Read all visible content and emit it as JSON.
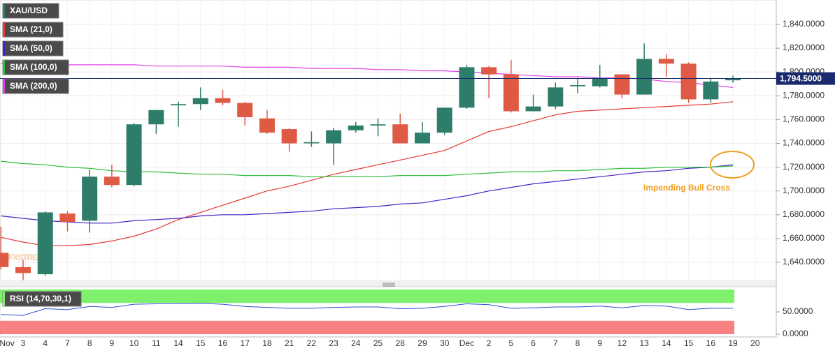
{
  "chart_data": [
    {
      "type": "candlestick",
      "name": "XAU/USD",
      "watermark": "FXSTREET",
      "categories": [
        "Nov",
        "3",
        "4",
        "7",
        "8",
        "9",
        "10",
        "11",
        "14",
        "15",
        "16",
        "17",
        "18",
        "21",
        "22",
        "23",
        "24",
        "25",
        "28",
        "29",
        "30",
        "Dec",
        "2",
        "5",
        "6",
        "7",
        "8",
        "9",
        "12",
        "13",
        "14",
        "15",
        "16",
        "19",
        "20"
      ],
      "open": [
        1648,
        1636,
        1630,
        1681,
        1675,
        1712,
        1705,
        1756,
        1772,
        1773,
        1778,
        1774,
        1761,
        1752,
        1740,
        1740,
        1751,
        1755,
        1756,
        1740,
        1749,
        1770,
        1804,
        1798,
        1767,
        1771,
        1788,
        1788,
        1798,
        1781,
        1811,
        1807,
        1777,
        1793,
        null
      ],
      "high": [
        1670,
        1642,
        1683,
        1683,
        1718,
        1722,
        1757,
        1768,
        1775,
        1787,
        1785,
        1775,
        1768,
        1753,
        1750,
        1753,
        1758,
        1761,
        1765,
        1758,
        1770,
        1806,
        1805,
        1810,
        1781,
        1791,
        1795,
        1806,
        1798,
        1824,
        1815,
        1808,
        1795,
        1797,
        null
      ],
      "low": [
        1634,
        1625,
        1629,
        1666,
        1665,
        1703,
        1704,
        1748,
        1754,
        1768,
        1772,
        1755,
        1748,
        1733,
        1737,
        1722,
        1749,
        1746,
        1740,
        1740,
        1747,
        1769,
        1778,
        1766,
        1767,
        1769,
        1782,
        1787,
        1778,
        1781,
        1796,
        1774,
        1774,
        1791,
        null
      ],
      "close": [
        1636,
        1631,
        1682,
        1674,
        1712,
        1705,
        1756,
        1768,
        1773,
        1778,
        1774,
        1762,
        1749,
        1740,
        1741,
        1751,
        1755,
        1756,
        1740,
        1749,
        1770,
        1804,
        1798,
        1767,
        1771,
        1787,
        1789,
        1795,
        1781,
        1811,
        1807,
        1777,
        1792,
        1794.5,
        null
      ],
      "up_color": "#2e7d6b",
      "down_color": "#df5a45",
      "overlays": [
        {
          "name": "SMA (21,0)",
          "color": "#e53935",
          "values": [
            1661,
            1657,
            1654,
            1654,
            1655,
            1658,
            1662,
            1668,
            1676,
            1682,
            1688,
            1694,
            1700,
            1704,
            1709,
            1714,
            1718,
            1722,
            1726,
            1730,
            1734,
            1742,
            1750,
            1754,
            1759,
            1764,
            1767,
            1768,
            1769,
            1770,
            1771,
            1772,
            1773,
            1775,
            null
          ]
        },
        {
          "name": "SMA (50,0)",
          "color": "#4a22c8",
          "values": [
            1679,
            1677,
            1675,
            1674,
            1673,
            1673,
            1675,
            1676,
            1677,
            1679,
            1680,
            1680,
            1681,
            1682,
            1683,
            1685,
            1686,
            1687,
            1689,
            1690,
            1693,
            1696,
            1700,
            1703,
            1706,
            1708,
            1710,
            1712,
            1714,
            1716,
            1717,
            1719,
            1720,
            1722,
            null
          ]
        },
        {
          "name": "SMA (100,0)",
          "color": "#2fbf3a",
          "values": [
            1725,
            1723,
            1722,
            1720,
            1719,
            1717,
            1716,
            1716,
            1715,
            1714,
            1714,
            1713,
            1713,
            1713,
            1712,
            1712,
            1712,
            1712,
            1713,
            1713,
            1713,
            1714,
            1715,
            1716,
            1716,
            1717,
            1717,
            1718,
            1719,
            1719,
            1720,
            1720,
            1720,
            1721,
            null
          ]
        },
        {
          "name": "SMA (200,0)",
          "color": "#e040e8",
          "values": [
            1807,
            1807,
            1807,
            1806,
            1806,
            1806,
            1806,
            1805,
            1805,
            1805,
            1805,
            1804,
            1804,
            1804,
            1803,
            1803,
            1803,
            1802,
            1802,
            1801,
            1801,
            1800,
            1799,
            1798,
            1797,
            1796,
            1796,
            1795,
            1795,
            1794,
            1792,
            1791,
            1789,
            1787,
            null
          ]
        }
      ],
      "last_price": {
        "value": 1794.5,
        "label": "1,794.5000"
      },
      "annotation": "Impending Bull Cross",
      "ylim": [
        1624.2,
        1860.5
      ],
      "yticks": [
        {
          "value": 1640,
          "label": "1,640.0000"
        },
        {
          "value": 1660,
          "label": "1,660.0000"
        },
        {
          "value": 1680,
          "label": "1,680.0000"
        },
        {
          "value": 1700,
          "label": "1,700.0000"
        },
        {
          "value": 1720,
          "label": "1,720.0000"
        },
        {
          "value": 1740,
          "label": "1,740.0000"
        },
        {
          "value": 1760,
          "label": "1,760.0000"
        },
        {
          "value": 1780,
          "label": "1,780.0000"
        },
        {
          "value": 1800,
          "label": "1,800.0000"
        },
        {
          "value": 1820,
          "label": "1,820.0000"
        },
        {
          "value": 1840,
          "label": "1,840.0000"
        }
      ],
      "grid": true
    },
    {
      "type": "line",
      "name": "RSI (14,70,30,1)",
      "color": "#2d4fd6",
      "values": [
        44,
        42,
        57,
        55,
        62,
        60,
        67,
        68,
        68,
        69,
        67,
        62,
        60,
        58,
        58,
        60,
        61,
        61,
        57,
        58,
        62,
        68,
        66,
        58,
        59,
        61,
        61,
        63,
        59,
        64,
        63,
        55,
        58,
        58,
        null
      ],
      "bands": [
        {
          "from": 70,
          "to": 100,
          "color": "#7ef06c"
        },
        {
          "from": 0,
          "to": 30,
          "color": "#f88080"
        }
      ],
      "ylim": [
        -6.25,
        106.25
      ],
      "yticks": [
        {
          "value": 0,
          "label": "0.0000"
        },
        {
          "value": 50,
          "label": "50.0000"
        }
      ]
    }
  ]
}
